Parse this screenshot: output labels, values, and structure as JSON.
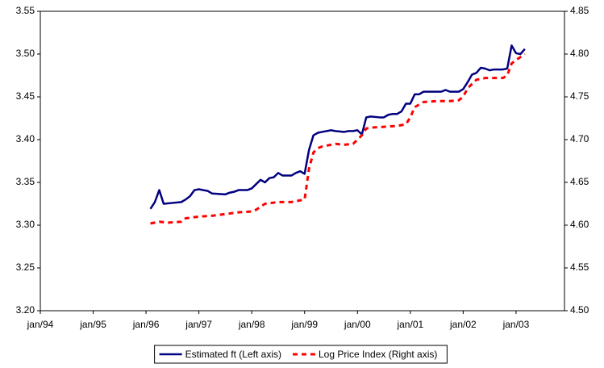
{
  "chart_data": {
    "type": "line",
    "xlim": [
      "1994-01",
      "2003-12"
    ],
    "xticks": [
      {
        "value": "1994-01",
        "label": "jan/94"
      },
      {
        "value": "1995-01",
        "label": "jan/95"
      },
      {
        "value": "1996-01",
        "label": "jan/96"
      },
      {
        "value": "1997-01",
        "label": "jan/97"
      },
      {
        "value": "1998-01",
        "label": "jan/98"
      },
      {
        "value": "1999-01",
        "label": "jan/99"
      },
      {
        "value": "2000-01",
        "label": "jan/00"
      },
      {
        "value": "2001-01",
        "label": "jan/01"
      },
      {
        "value": "2002-01",
        "label": "jan/02"
      },
      {
        "value": "2003-01",
        "label": "jan/03"
      }
    ],
    "ylim": [
      3.2,
      3.55
    ],
    "yticks": [
      {
        "value": 3.2,
        "label": "3.20"
      },
      {
        "value": 3.25,
        "label": "3.25"
      },
      {
        "value": 3.3,
        "label": "3.30"
      },
      {
        "value": 3.35,
        "label": "3.35"
      },
      {
        "value": 3.4,
        "label": "3.40"
      },
      {
        "value": 3.45,
        "label": "3.45"
      },
      {
        "value": 3.5,
        "label": "3.50"
      },
      {
        "value": 3.55,
        "label": "3.55"
      }
    ],
    "y2lim": [
      4.5,
      4.85
    ],
    "y2ticks": [
      {
        "value": 4.5,
        "label": "4.50"
      },
      {
        "value": 4.55,
        "label": "4.55"
      },
      {
        "value": 4.6,
        "label": "4.60"
      },
      {
        "value": 4.65,
        "label": "4.65"
      },
      {
        "value": 4.7,
        "label": "4.70"
      },
      {
        "value": 4.75,
        "label": "4.75"
      },
      {
        "value": 4.8,
        "label": "4.80"
      },
      {
        "value": 4.85,
        "label": "4.85"
      }
    ],
    "grid": false,
    "legend": "bottom",
    "series": [
      {
        "name": "Estimated ft (Left axis)",
        "color": "#000080",
        "dashed": false,
        "x": [
          "1996-02",
          "1996-03",
          "1996-04",
          "1996-05",
          "1996-07",
          "1996-09",
          "1996-10",
          "1996-11",
          "1996-12",
          "1997-01",
          "1997-03",
          "1997-04",
          "1997-07",
          "1997-08",
          "1997-09",
          "1997-10",
          "1997-12",
          "1998-01",
          "1998-03",
          "1998-04",
          "1998-05",
          "1998-06",
          "1998-07",
          "1998-08",
          "1998-10",
          "1998-11",
          "1998-12",
          "1999-01",
          "1999-02",
          "1999-03",
          "1999-04",
          "1999-05",
          "1999-07",
          "1999-08",
          "1999-10",
          "1999-11",
          "1999-12",
          "2000-01",
          "2000-02",
          "2000-03",
          "2000-04",
          "2000-06",
          "2000-07",
          "2000-08",
          "2000-09",
          "2000-10",
          "2000-11",
          "2000-12",
          "2001-01",
          "2001-02",
          "2001-03",
          "2001-04",
          "2001-07",
          "2001-08",
          "2001-09",
          "2001-10",
          "2001-12",
          "2002-01",
          "2002-02",
          "2002-03",
          "2002-04",
          "2002-05",
          "2002-06",
          "2002-07",
          "2002-08",
          "2002-10",
          "2002-11",
          "2002-12",
          "2003-01",
          "2003-02",
          "2003-03"
        ],
        "values": [
          3.319,
          3.327,
          3.341,
          3.325,
          3.326,
          3.327,
          3.33,
          3.334,
          3.341,
          3.342,
          3.34,
          3.337,
          3.336,
          3.338,
          3.339,
          3.341,
          3.341,
          3.343,
          3.353,
          3.35,
          3.355,
          3.356,
          3.361,
          3.358,
          3.358,
          3.361,
          3.363,
          3.36,
          3.388,
          3.405,
          3.408,
          3.409,
          3.411,
          3.41,
          3.409,
          3.41,
          3.41,
          3.411,
          3.406,
          3.426,
          3.427,
          3.426,
          3.426,
          3.429,
          3.43,
          3.43,
          3.433,
          3.442,
          3.442,
          3.453,
          3.453,
          3.456,
          3.456,
          3.456,
          3.458,
          3.456,
          3.456,
          3.459,
          3.467,
          3.476,
          3.478,
          3.484,
          3.483,
          3.481,
          3.482,
          3.482,
          3.483,
          3.51,
          3.501,
          3.5,
          3.506
        ]
      },
      {
        "name": "Log Price Index (Right axis)",
        "color": "#ff0000",
        "dashed": true,
        "axis": "y2",
        "x": [
          "1996-02",
          "1996-04",
          "1996-06",
          "1996-09",
          "1996-10",
          "1997-01",
          "1997-04",
          "1997-07",
          "1997-10",
          "1998-01",
          "1998-02",
          "1998-04",
          "1998-07",
          "1998-10",
          "1998-12",
          "1999-01",
          "1999-02",
          "1999-03",
          "1999-04",
          "1999-05",
          "1999-07",
          "1999-08",
          "1999-10",
          "1999-12",
          "2000-01",
          "2000-02",
          "2000-03",
          "2000-04",
          "2000-07",
          "2000-10",
          "2000-12",
          "2001-01",
          "2001-02",
          "2001-04",
          "2001-07",
          "2001-10",
          "2001-12",
          "2002-01",
          "2002-02",
          "2002-04",
          "2002-06",
          "2002-10",
          "2002-11",
          "2002-12",
          "2003-01",
          "2003-03"
        ],
        "values": [
          4.602,
          4.604,
          4.603,
          4.604,
          4.608,
          4.61,
          4.611,
          4.613,
          4.615,
          4.616,
          4.618,
          4.625,
          4.627,
          4.627,
          4.629,
          4.63,
          4.666,
          4.685,
          4.69,
          4.692,
          4.694,
          4.695,
          4.694,
          4.695,
          4.7,
          4.705,
          4.713,
          4.714,
          4.715,
          4.716,
          4.718,
          4.726,
          4.738,
          4.744,
          4.745,
          4.745,
          4.746,
          4.75,
          4.76,
          4.77,
          4.772,
          4.772,
          4.775,
          4.789,
          4.793,
          4.8
        ]
      }
    ]
  }
}
